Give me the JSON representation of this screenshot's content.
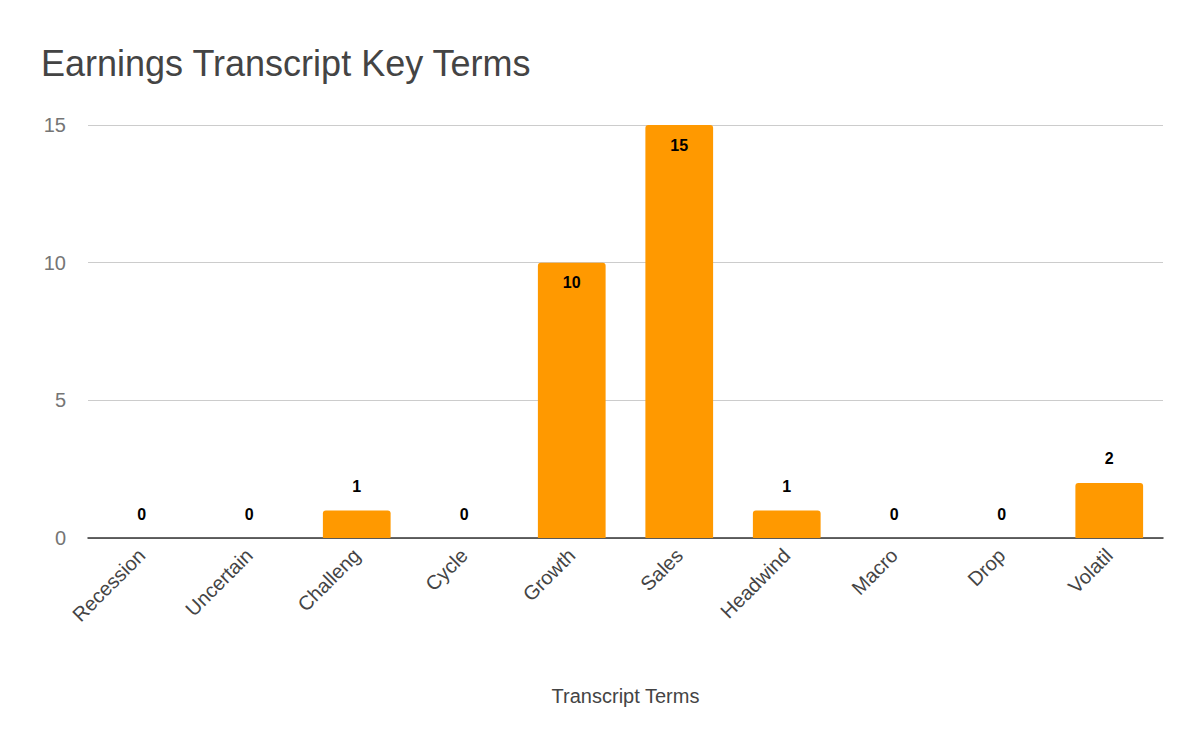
{
  "chart_data": {
    "type": "bar",
    "title": "Earnings Transcript Key Terms",
    "x_label": "Transcript Terms",
    "categories": [
      "Recession",
      "Uncertain",
      "Challeng",
      "Cycle",
      "Growth",
      "Sales",
      "Headwind",
      "Macro",
      "Drop",
      "Volatil"
    ],
    "values": [
      0,
      0,
      1,
      0,
      10,
      15,
      1,
      0,
      0,
      2
    ],
    "color": "#ff9900",
    "ylim": [
      0,
      15
    ],
    "yticks": [
      0,
      5,
      10,
      15
    ],
    "grid": true,
    "data_labels": true
  }
}
